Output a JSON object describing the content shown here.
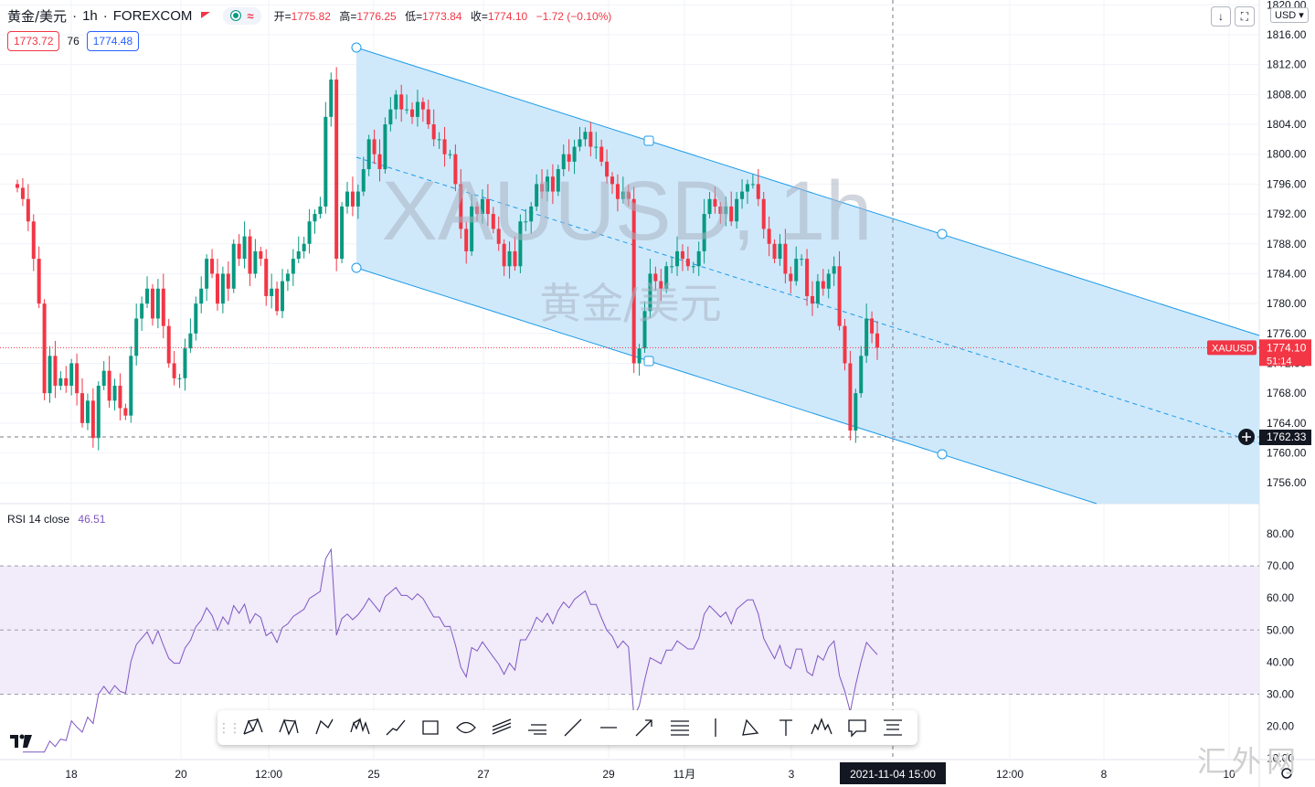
{
  "header": {
    "symbol_title": "黄金/美元",
    "interval": "1h",
    "exchange": "FOREXCOM",
    "ohlc": [
      {
        "label": "开=",
        "value": "1775.82"
      },
      {
        "label": "高=",
        "value": "1776.25"
      },
      {
        "label": "低=",
        "value": "1773.84"
      },
      {
        "label": "收=",
        "value": "1774.10"
      },
      {
        "label": "",
        "value": "−1.72 (−0.10%)"
      }
    ],
    "bid": "1773.72",
    "spread": "76",
    "ask": "1774.48",
    "currency": "USD",
    "btn_down": "↓",
    "btn_fullscreen": "⛶",
    "currency_arrow": "▾"
  },
  "watermark": {
    "line1": "XAUUSD, 1h",
    "line2": "黄金/美元"
  },
  "price_axis": {
    "labels": [
      "1820.00",
      "1816.00",
      "1812.00",
      "1808.00",
      "1804.00",
      "1800.00",
      "1796.00",
      "1792.00",
      "1788.00",
      "1784.00",
      "1780.00",
      "1776.00",
      "1772.00",
      "1768.00",
      "1764.00",
      "1760.00",
      "1756.00"
    ],
    "current_symbol": "XAUUSD",
    "current_price": "1774.10",
    "countdown": "51:14",
    "crosshair_price": "1762.33"
  },
  "rsi": {
    "label": "RSI",
    "params": "14 close",
    "value": "46.51",
    "axis_labels": [
      "80.00",
      "70.00",
      "60.00",
      "50.00",
      "40.00",
      "30.00",
      "20.00",
      "10.00"
    ]
  },
  "time_axis": {
    "labels": [
      "18",
      "20",
      "12:00",
      "25",
      "27",
      "29",
      "11月",
      "3",
      "12:00",
      "8",
      "10"
    ],
    "crosshair_time": "2021-11-04   15:00"
  },
  "toolbar": {
    "tools": [
      "xabcd-pattern-icon",
      "cypher-pattern-icon",
      "abcd-pattern-icon",
      "elliott-wave-icon",
      "path-icon",
      "rectangle-icon",
      "ellipse-icon",
      "parallel-channel-icon",
      "pitchfork-icon",
      "trend-line-icon",
      "horizontal-ray-icon",
      "arrow-icon",
      "fib-retracement-icon",
      "vertical-line-icon",
      "triangle-icon",
      "text-icon",
      "head-shoulders-icon",
      "callout-icon",
      "date-range-icon"
    ]
  },
  "corner_watermark": "汇外网",
  "colors": {
    "up": "#089981",
    "down": "#f23645",
    "channel_fill": "#cce8fb",
    "channel_line": "#1e9be9",
    "rsi_line": "#7e57c2",
    "rsi_band": "#f1ebfa"
  },
  "chart_data": {
    "type": "candlestick",
    "price_range": [
      1754,
      1820
    ],
    "rsi_range": [
      10,
      83
    ],
    "closes": [
      1795.5,
      1794,
      1791,
      1786,
      1780,
      1768,
      1773,
      1769,
      1770,
      1769,
      1772,
      1768,
      1764,
      1767,
      1762,
      1769,
      1771,
      1767,
      1769,
      1766,
      1765,
      1773,
      1778,
      1780,
      1782,
      1778,
      1782,
      1777,
      1772,
      1770,
      1770,
      1774,
      1776,
      1780,
      1782,
      1786,
      1784,
      1780,
      1784,
      1782,
      1788,
      1786,
      1789,
      1784,
      1787,
      1786,
      1781,
      1782,
      1779,
      1783,
      1784,
      1786,
      1787,
      1788,
      1791,
      1792,
      1793,
      1805,
      1810,
      1786,
      1793,
      1795,
      1793,
      1795,
      1798,
      1802,
      1800,
      1798,
      1804,
      1806,
      1808,
      1806,
      1806,
      1805,
      1807,
      1806,
      1804,
      1802,
      1802,
      1800,
      1800,
      1796,
      1790,
      1787,
      1793,
      1792,
      1794,
      1792,
      1790,
      1788,
      1785,
      1787,
      1785,
      1791,
      1791,
      1793,
      1796,
      1795,
      1797,
      1795,
      1798,
      1800,
      1799,
      1801,
      1802,
      1803,
      1801,
      1801,
      1799,
      1797,
      1796,
      1794,
      1795,
      1794,
      1772,
      1774,
      1779,
      1784,
      1783,
      1782,
      1785,
      1785,
      1787,
      1786,
      1785,
      1785,
      1787,
      1792,
      1794,
      1793,
      1792,
      1793,
      1791,
      1794,
      1795,
      1796,
      1796,
      1794,
      1790,
      1788,
      1786,
      1788,
      1784,
      1783,
      1786,
      1786,
      1781,
      1780,
      1783,
      1782,
      1784,
      1785,
      1777,
      1772,
      1763,
      1768,
      1773,
      1778,
      1776,
      1774.1
    ]
  }
}
